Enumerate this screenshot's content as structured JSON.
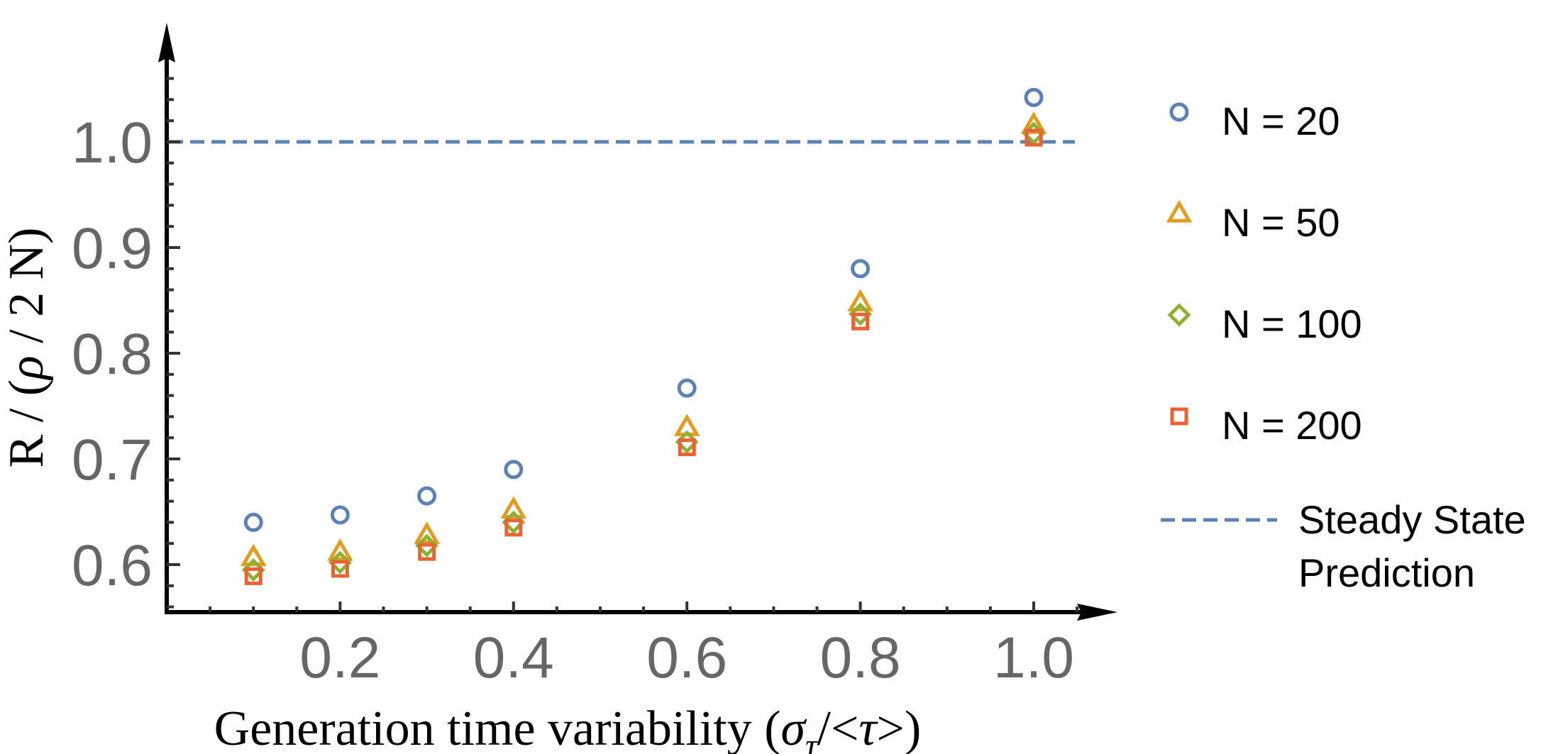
{
  "chart_data": {
    "type": "scatter",
    "xlabel": {
      "main": "Generation time variability (",
      "sigma": "σ",
      "sub": "τ",
      "rest": "/<",
      "tau": "τ",
      "close": ">)"
    },
    "ylabel": {
      "main": "R / (",
      "rho": "ρ",
      "rest": " / 2 N)"
    },
    "xlim": [
      0,
      1.1
    ],
    "ylim": [
      0.55,
      1.07
    ],
    "xticks": [
      "0.2",
      "0.4",
      "0.6",
      "0.8",
      "1.0"
    ],
    "yticks": [
      "0.6",
      "0.7",
      "0.8",
      "0.9",
      "1.0"
    ],
    "grid": false,
    "legend_position": "right",
    "series": [
      {
        "name": "N = 20",
        "marker": "circle",
        "color": "#5E81B5",
        "points": [
          [
            0.1,
            0.64
          ],
          [
            0.2,
            0.647
          ],
          [
            0.3,
            0.665
          ],
          [
            0.4,
            0.69
          ],
          [
            0.6,
            0.767
          ],
          [
            0.8,
            0.88
          ],
          [
            1.0,
            1.042
          ]
        ]
      },
      {
        "name": "N = 50",
        "marker": "triangle",
        "color": "#E19C24",
        "points": [
          [
            0.1,
            0.607
          ],
          [
            0.2,
            0.612
          ],
          [
            0.3,
            0.628
          ],
          [
            0.4,
            0.652
          ],
          [
            0.6,
            0.73
          ],
          [
            0.8,
            0.848
          ],
          [
            1.0,
            1.016
          ]
        ]
      },
      {
        "name": "N = 100",
        "marker": "diamond",
        "color": "#8FB032",
        "points": [
          [
            0.1,
            0.595
          ],
          [
            0.2,
            0.602
          ],
          [
            0.3,
            0.618
          ],
          [
            0.4,
            0.64
          ],
          [
            0.6,
            0.716
          ],
          [
            0.8,
            0.837
          ],
          [
            1.0,
            1.008
          ]
        ]
      },
      {
        "name": "N = 200",
        "marker": "square",
        "color": "#EB6235",
        "points": [
          [
            0.1,
            0.589
          ],
          [
            0.2,
            0.596
          ],
          [
            0.3,
            0.612
          ],
          [
            0.4,
            0.635
          ],
          [
            0.6,
            0.711
          ],
          [
            0.8,
            0.83
          ],
          [
            1.0,
            1.004
          ]
        ]
      }
    ],
    "reference_line": {
      "name_line1": "Steady State",
      "name_line2": "Prediction",
      "y": 1.0,
      "style": "dashed",
      "color": "#5E81B5"
    }
  }
}
